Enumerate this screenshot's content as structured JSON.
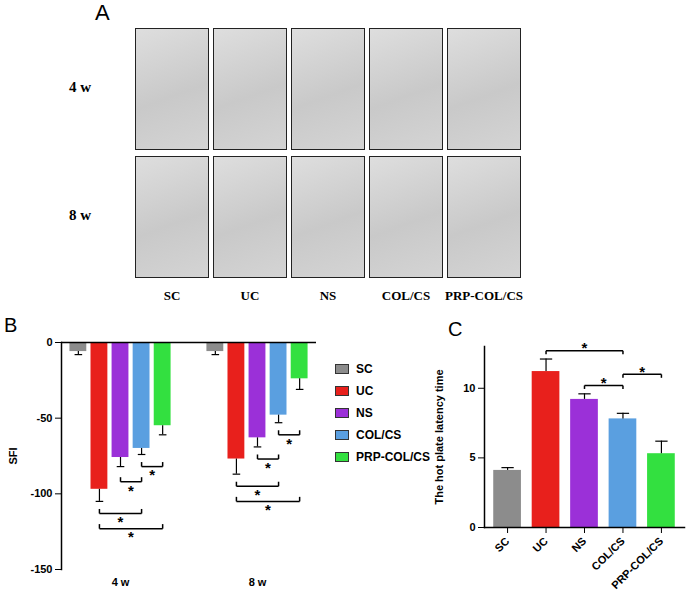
{
  "chart_data": [
    {
      "type": "image_grid",
      "title": "A",
      "rows": [
        "4 w",
        "8 w"
      ],
      "columns": [
        "SC",
        "UC",
        "NS",
        "COL/CS",
        "PRP-COL/CS"
      ]
    },
    {
      "type": "bar",
      "title": "B",
      "ylabel": "SFI",
      "categories": [
        "4 w",
        "8 w"
      ],
      "ylim": [
        -150,
        0
      ],
      "yticks": [
        0,
        -50,
        -100,
        -150
      ],
      "legend": "right",
      "series": [
        {
          "name": "SC",
          "color": "#8c8c8c",
          "values": [
            -6,
            -6
          ],
          "errors": [
            2,
            2
          ]
        },
        {
          "name": "UC",
          "color": "#e8201c",
          "values": [
            -97,
            -77
          ],
          "errors": [
            8,
            10
          ]
        },
        {
          "name": "NS",
          "color": "#9b30d8",
          "values": [
            -76,
            -63
          ],
          "errors": [
            6,
            6
          ]
        },
        {
          "name": "COL/CS",
          "color": "#5a9fe0",
          "values": [
            -70,
            -48
          ],
          "errors": [
            4,
            5
          ]
        },
        {
          "name": "PRP-COL/CS",
          "color": "#33e040",
          "values": [
            -55,
            -24
          ],
          "errors": [
            6,
            7
          ]
        }
      ],
      "significance": [
        {
          "category": "4 w",
          "from": "COL/CS",
          "to": "PRP-COL/CS",
          "label": "*"
        },
        {
          "category": "4 w",
          "from": "NS",
          "to": "COL/CS",
          "label": "*"
        },
        {
          "category": "4 w",
          "from": "UC",
          "to": "COL/CS",
          "label": "*"
        },
        {
          "category": "4 w",
          "from": "UC",
          "to": "PRP-COL/CS",
          "label": "*"
        },
        {
          "category": "8 w",
          "from": "COL/CS",
          "to": "PRP-COL/CS",
          "label": "*"
        },
        {
          "category": "8 w",
          "from": "NS",
          "to": "COL/CS",
          "label": "*"
        },
        {
          "category": "8 w",
          "from": "UC",
          "to": "COL/CS",
          "label": "*"
        },
        {
          "category": "8 w",
          "from": "UC",
          "to": "PRP-COL/CS",
          "label": "*"
        }
      ]
    },
    {
      "type": "bar",
      "title": "C",
      "ylabel": "The hot plate latency time",
      "categories": [
        "SC",
        "UC",
        "NS",
        "COL/CS",
        "PRP-COL/CS"
      ],
      "values": [
        4.1,
        11.2,
        9.2,
        7.8,
        5.3
      ],
      "errors": [
        0.2,
        0.9,
        0.4,
        0.4,
        0.9
      ],
      "colors": [
        "#8c8c8c",
        "#e8201c",
        "#9b30d8",
        "#5a9fe0",
        "#33e040"
      ],
      "ylim": [
        0,
        13
      ],
      "yticks": [
        0,
        5,
        10
      ],
      "significance": [
        {
          "from": "UC",
          "to": "COL/CS",
          "label": "*"
        },
        {
          "from": "NS",
          "to": "COL/CS",
          "label": "*"
        },
        {
          "from": "COL/CS",
          "to": "PRP-COL/CS",
          "label": "*"
        }
      ]
    }
  ]
}
